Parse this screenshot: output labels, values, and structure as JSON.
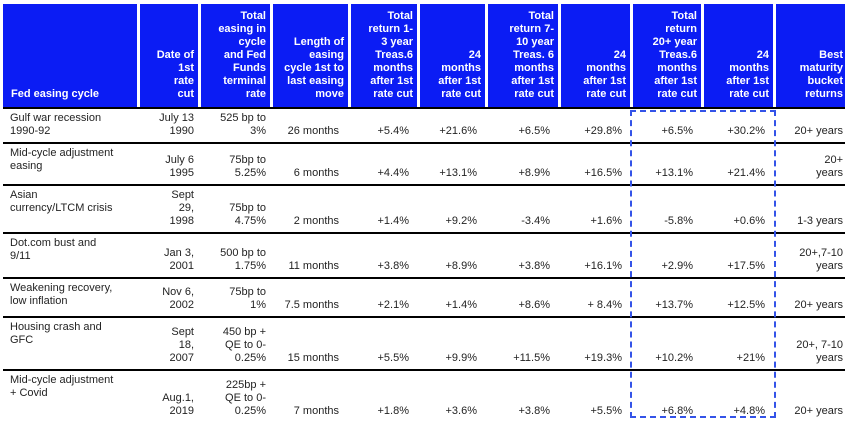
{
  "colors": {
    "header_bg": "#0b1cf4",
    "header_text": "#ffffff",
    "body_text": "#232323",
    "grid_line": "#000000",
    "highlight_border": "#3453e8"
  },
  "header": [
    "Fed easing cycle",
    "Date of\n1st\nrate\ncut",
    "Total\neasing in\ncycle\nand Fed\nFunds\nterminal\nrate",
    "Length of\neasing\ncycle 1st to\nlast easing\nmove",
    "Total\nreturn 1-\n3 year\nTreas.6\nmonths\nafter 1st\nrate cut",
    "24\nmonths\nafter 1st\nrate cut",
    "Total\nreturn 7-\n10 year\nTreas. 6\nmonths\nafter 1st\nrate cut",
    "24\nmonths\nafter 1st\nrate cut",
    "Total\nreturn\n20+ year\nTreas.6\nmonths\nafter 1st\nrate cut",
    "24\nmonths\nafter 1st\nrate cut",
    "Best\nmaturity\nbucket\nreturns"
  ],
  "rows": [
    {
      "cycle": "Gulf war recession\n1990-92",
      "date": "July 13\n1990",
      "easing": "525 bp to\n3%",
      "length": "26 months",
      "t13_6m": "+5.4%",
      "t13_24m": "+21.6%",
      "t710_6m": "+6.5%",
      "t710_24m": "+29.8%",
      "t20_6m": "+6.5%",
      "t20_24m": "+30.2%",
      "best": "20+ years"
    },
    {
      "cycle": "Mid-cycle adjustment\neasing",
      "date": "July 6\n1995",
      "easing": "75bp to\n5.25%",
      "length": "6 months",
      "t13_6m": "+4.4%",
      "t13_24m": "+13.1%",
      "t710_6m": "+8.9%",
      "t710_24m": "+16.5%",
      "t20_6m": "+13.1%",
      "t20_24m": "+21.4%",
      "best": "20+\nyears"
    },
    {
      "cycle": "Asian\ncurrency/LTCM crisis",
      "date": "Sept\n29,\n1998",
      "easing": "75bp to\n4.75%",
      "length": "2 months",
      "t13_6m": "+1.4%",
      "t13_24m": "+9.2%",
      "t710_6m": "-3.4%",
      "t710_24m": "+1.6%",
      "t20_6m": "-5.8%",
      "t20_24m": "+0.6%",
      "best": "1-3 years"
    },
    {
      "cycle": "Dot.com bust and\n9/11",
      "date": "Jan 3,\n2001",
      "easing": "500 bp to\n1.75%",
      "length": "11 months",
      "t13_6m": "+3.8%",
      "t13_24m": "+8.9%",
      "t710_6m": "+3.8%",
      "t710_24m": "+16.1%",
      "t20_6m": "+2.9%",
      "t20_24m": "+17.5%",
      "best": "20+,7-10\nyears"
    },
    {
      "cycle": "Weakening recovery,\nlow inflation",
      "date": "Nov 6,\n2002",
      "easing": "75bp to\n1%",
      "length": "7.5 months",
      "t13_6m": "+2.1%",
      "t13_24m": "+1.4%",
      "t710_6m": "+8.6%",
      "t710_24m": "+ 8.4%",
      "t20_6m": "+13.7%",
      "t20_24m": "+12.5%",
      "best": "20+ years"
    },
    {
      "cycle": "Housing crash and\nGFC",
      "date": "Sept\n18,\n2007",
      "easing": "450 bp +\nQE to 0-\n0.25%",
      "length": "15 months",
      "t13_6m": "+5.5%",
      "t13_24m": "+9.9%",
      "t710_6m": "+11.5%",
      "t710_24m": "+19.3%",
      "t20_6m": "+10.2%",
      "t20_24m": "+21%",
      "best": "20+, 7-10\nyears"
    },
    {
      "cycle": "Mid-cycle adjustment\n+ Covid",
      "date": "Aug.1,\n2019",
      "easing": "225bp +\nQE to 0-\n0.25%",
      "length": "7 months",
      "t13_6m": "+1.8%",
      "t13_24m": "+3.6%",
      "t710_6m": "+3.8%",
      "t710_24m": "+5.5%",
      "t20_6m": "+6.8%",
      "t20_24m": "+4.8%",
      "best": "20+ years"
    }
  ],
  "highlight": {
    "label": "Total return 20+ year Treasuries columns (6 months and 24 months after 1st rate cut)",
    "border_color": "#3453e8"
  },
  "chart_data": {
    "type": "table",
    "title": "Fed easing cycles and Treasury total returns after 1st rate cut",
    "columns": [
      "Fed easing cycle",
      "Date of 1st rate cut",
      "Total easing in cycle and Fed Funds terminal rate",
      "Length of easing cycle 1st to last easing move",
      "Total return 1-3 year Treas. 6 months after 1st rate cut",
      "24 months after 1st rate cut",
      "Total return 7-10 year Treas. 6 months after 1st rate cut",
      "24 months after 1st rate cut",
      "Total return 20+ year Treas. 6 months after 1st rate cut",
      "24 months after 1st rate cut",
      "Best maturity bucket returns"
    ],
    "rows": [
      [
        "Gulf war recession 1990-92",
        "July 13 1990",
        "525 bp to 3%",
        "26 months",
        "+5.4%",
        "+21.6%",
        "+6.5%",
        "+29.8%",
        "+6.5%",
        "+30.2%",
        "20+ years"
      ],
      [
        "Mid-cycle adjustment easing",
        "July 6 1995",
        "75bp to 5.25%",
        "6 months",
        "+4.4%",
        "+13.1%",
        "+8.9%",
        "+16.5%",
        "+13.1%",
        "+21.4%",
        "20+ years"
      ],
      [
        "Asian currency/LTCM crisis",
        "Sept 29, 1998",
        "75bp to 4.75%",
        "2 months",
        "+1.4%",
        "+9.2%",
        "-3.4%",
        "+1.6%",
        "-5.8%",
        "+0.6%",
        "1-3 years"
      ],
      [
        "Dot.com bust and 9/11",
        "Jan 3, 2001",
        "500 bp to 1.75%",
        "11 months",
        "+3.8%",
        "+8.9%",
        "+3.8%",
        "+16.1%",
        "+2.9%",
        "+17.5%",
        "20+,7-10 years"
      ],
      [
        "Weakening recovery, low inflation",
        "Nov 6, 2002",
        "75bp to 1%",
        "7.5 months",
        "+2.1%",
        "+1.4%",
        "+8.6%",
        "+ 8.4%",
        "+13.7%",
        "+12.5%",
        "20+ years"
      ],
      [
        "Housing crash and GFC",
        "Sept 18, 2007",
        "450 bp + QE to 0-0.25%",
        "15 months",
        "+5.5%",
        "+9.9%",
        "+11.5%",
        "+19.3%",
        "+10.2%",
        "+21%",
        "20+, 7-10 years"
      ],
      [
        "Mid-cycle adjustment + Covid",
        "Aug.1, 2019",
        "225bp + QE to 0-0.25%",
        "7 months",
        "+1.8%",
        "+3.6%",
        "+3.8%",
        "+5.5%",
        "+6.8%",
        "+4.8%",
        "20+ years"
      ]
    ],
    "layout_hints": {
      "header_style": "blue background, white bold text, right-aligned, bottom-aligned",
      "highlighted_columns": [
        8,
        9
      ],
      "highlight_style": "blue dashed rectangle spanning the 20+ year return columns across all data rows"
    }
  }
}
